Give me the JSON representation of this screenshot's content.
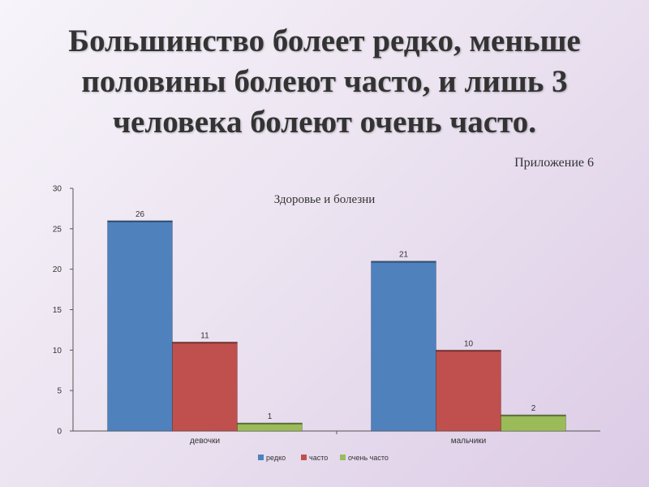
{
  "slide": {
    "heading": "Большинство болеет редко, меньше половины болеют часто, и лишь 3 человека болеют очень часто.",
    "appendix": "Приложение 6"
  },
  "chart_data": {
    "type": "bar",
    "title": "Здоровье и болезни",
    "categories": [
      "девочки",
      "мальчики"
    ],
    "series": [
      {
        "name": "редко",
        "values": [
          26,
          21
        ],
        "color": "#4f81bd"
      },
      {
        "name": "часто",
        "values": [
          11,
          10
        ],
        "color": "#c0504d"
      },
      {
        "name": "очень часто",
        "values": [
          1,
          2
        ],
        "color": "#9bbb59"
      }
    ],
    "ylim": [
      0,
      30
    ],
    "yticks": [
      0,
      5,
      10,
      15,
      20,
      25,
      30
    ],
    "xlabel": "",
    "ylabel": "",
    "grid": false,
    "legend": "bottom"
  }
}
